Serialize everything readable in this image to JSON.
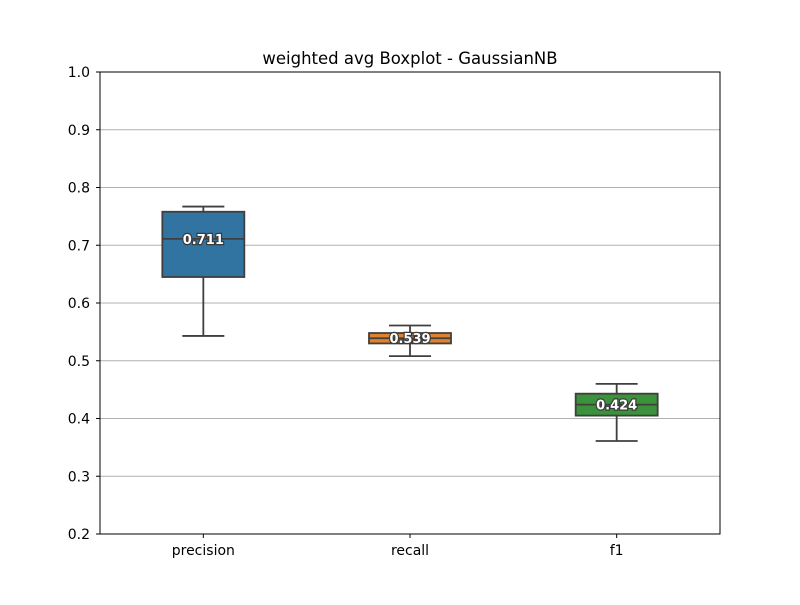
{
  "chart_data": {
    "type": "box",
    "title": "weighted avg Boxplot - GaussianNB",
    "xlabel": "",
    "ylabel": "",
    "ylim": [
      0.2,
      1.0
    ],
    "yticks": [
      "0.2",
      "0.3",
      "0.4",
      "0.5",
      "0.6",
      "0.7",
      "0.8",
      "0.9",
      "1.0"
    ],
    "grid": "horizontal",
    "categories": [
      "precision",
      "recall",
      "f1"
    ],
    "boxes": [
      {
        "category": "precision",
        "whisker_low": 0.543,
        "q1": 0.645,
        "median": 0.711,
        "q3": 0.758,
        "whisker_high": 0.767,
        "median_label": "0.711",
        "color": "#3274a1"
      },
      {
        "category": "recall",
        "whisker_low": 0.508,
        "q1": 0.53,
        "median": 0.539,
        "q3": 0.548,
        "whisker_high": 0.561,
        "median_label": "0.539",
        "color": "#e1812c"
      },
      {
        "category": "f1",
        "whisker_low": 0.361,
        "q1": 0.405,
        "median": 0.424,
        "q3": 0.443,
        "whisker_high": 0.46,
        "median_label": "0.424",
        "color": "#3a923a"
      }
    ],
    "line_color": "#3f3f3f",
    "grid_color": "#b0b0b0"
  }
}
